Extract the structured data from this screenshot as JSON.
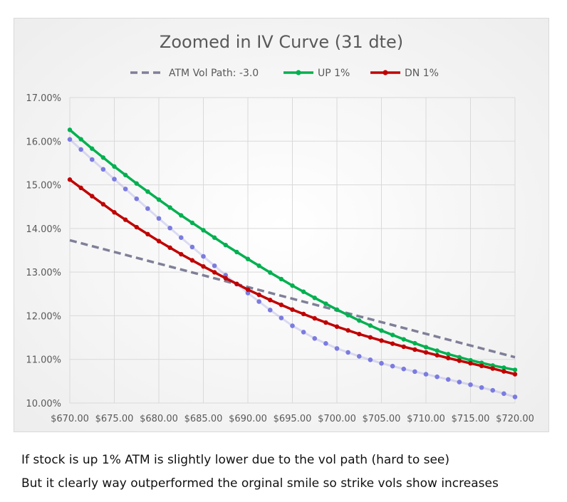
{
  "chart_data": {
    "type": "line",
    "title": "Zoomed in IV Curve  (31 dte)",
    "xlabel": "",
    "ylabel": "",
    "xlim": [
      670,
      720
    ],
    "ylim": [
      10.0,
      17.0
    ],
    "x_ticks": [
      "$670.00",
      "$675.00",
      "$680.00",
      "$685.00",
      "$690.00",
      "$695.00",
      "$700.00",
      "$705.00",
      "$710.00",
      "$715.00",
      "$720.00"
    ],
    "y_ticks": [
      "10.00%",
      "11.00%",
      "12.00%",
      "13.00%",
      "14.00%",
      "15.00%",
      "16.00%",
      "17.00%"
    ],
    "grid": true,
    "legend_position": "top",
    "original_smile": {
      "color": "#7b7be0",
      "x": [
        670,
        672.5,
        675,
        677.5,
        680,
        682.5,
        685,
        687.5,
        690,
        692.5,
        695,
        697.5,
        700,
        702.5,
        705,
        707.5,
        710,
        712.5,
        715,
        717.5,
        720
      ],
      "y": [
        16.04,
        15.58,
        15.13,
        14.68,
        14.23,
        13.79,
        13.36,
        12.93,
        12.52,
        12.13,
        11.77,
        11.48,
        11.25,
        11.07,
        10.91,
        10.78,
        10.66,
        10.54,
        10.42,
        10.29,
        10.14
      ]
    },
    "series": [
      {
        "name": "ATM Vol Path: -3.0",
        "color": "#7f7f98",
        "style": "dashed",
        "x": [
          670,
          720
        ],
        "y": [
          13.73,
          11.05
        ]
      },
      {
        "name": "UP 1%",
        "color": "#00b050",
        "style": "solid-dots",
        "x": [
          670,
          672.5,
          675,
          677.5,
          680,
          682.5,
          685,
          687.5,
          690,
          692.5,
          695,
          697.5,
          700,
          702.5,
          705,
          707.5,
          710,
          712.5,
          715,
          717.5,
          720
        ],
        "y": [
          16.26,
          15.83,
          15.42,
          15.03,
          14.66,
          14.3,
          13.96,
          13.62,
          13.3,
          12.99,
          12.69,
          12.41,
          12.14,
          11.89,
          11.66,
          11.46,
          11.28,
          11.12,
          10.98,
          10.86,
          10.76
        ]
      },
      {
        "name": "DN 1%",
        "color": "#c00000",
        "style": "solid-dots",
        "x": [
          670,
          672.5,
          675,
          677.5,
          680,
          682.5,
          685,
          687.5,
          690,
          692.5,
          695,
          697.5,
          700,
          702.5,
          705,
          707.5,
          710,
          712.5,
          715,
          717.5,
          720
        ],
        "y": [
          15.12,
          14.74,
          14.37,
          14.03,
          13.71,
          13.41,
          13.13,
          12.86,
          12.6,
          12.36,
          12.14,
          11.94,
          11.75,
          11.58,
          11.43,
          11.29,
          11.16,
          11.03,
          10.91,
          10.79,
          10.66
        ]
      }
    ]
  },
  "captions": {
    "line1": "If stock is up 1% ATM is slightly lower due to the vol path (hard to see)",
    "line2": "But it clearly way outperformed the orginal smile so strike vols show increases"
  }
}
